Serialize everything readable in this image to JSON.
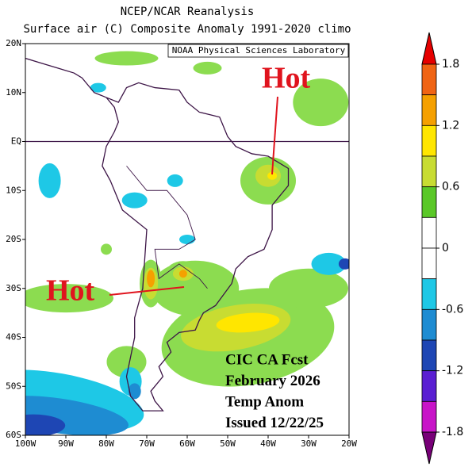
{
  "header": {
    "title": "NCEP/NCAR Reanalysis",
    "subtitle": "Surface air (C) Composite Anomaly 1991-2020 climo"
  },
  "credit": "NOAA Physical Sciences Laboratory",
  "map": {
    "lat_labels": [
      "20N",
      "10N",
      "EQ",
      "10S",
      "20S",
      "30S",
      "40S",
      "50S",
      "60S"
    ],
    "lon_labels": [
      "100W",
      "90W",
      "80W",
      "70W",
      "60W",
      "50W",
      "40W",
      "30W",
      "20W"
    ]
  },
  "annotations": {
    "hot": [
      "Hot",
      "Hot"
    ],
    "forecast": [
      "CIC CA Fcst",
      "February 2026",
      "Temp Anom",
      "Issued 12/22/25"
    ]
  },
  "colorbar": {
    "ticks": [
      1.8,
      1.2,
      0.6,
      0,
      -0.6,
      -1.2,
      -1.8
    ],
    "colors": [
      "#e60000",
      "#f06414",
      "#f5a000",
      "#ffe600",
      "#c8dc32",
      "#5ac828",
      "#ffffff",
      "#ffffff",
      "#1ec8e6",
      "#1e8cd2",
      "#1e46b4",
      "#5a1ed2",
      "#c814c8",
      "#780078"
    ]
  }
}
